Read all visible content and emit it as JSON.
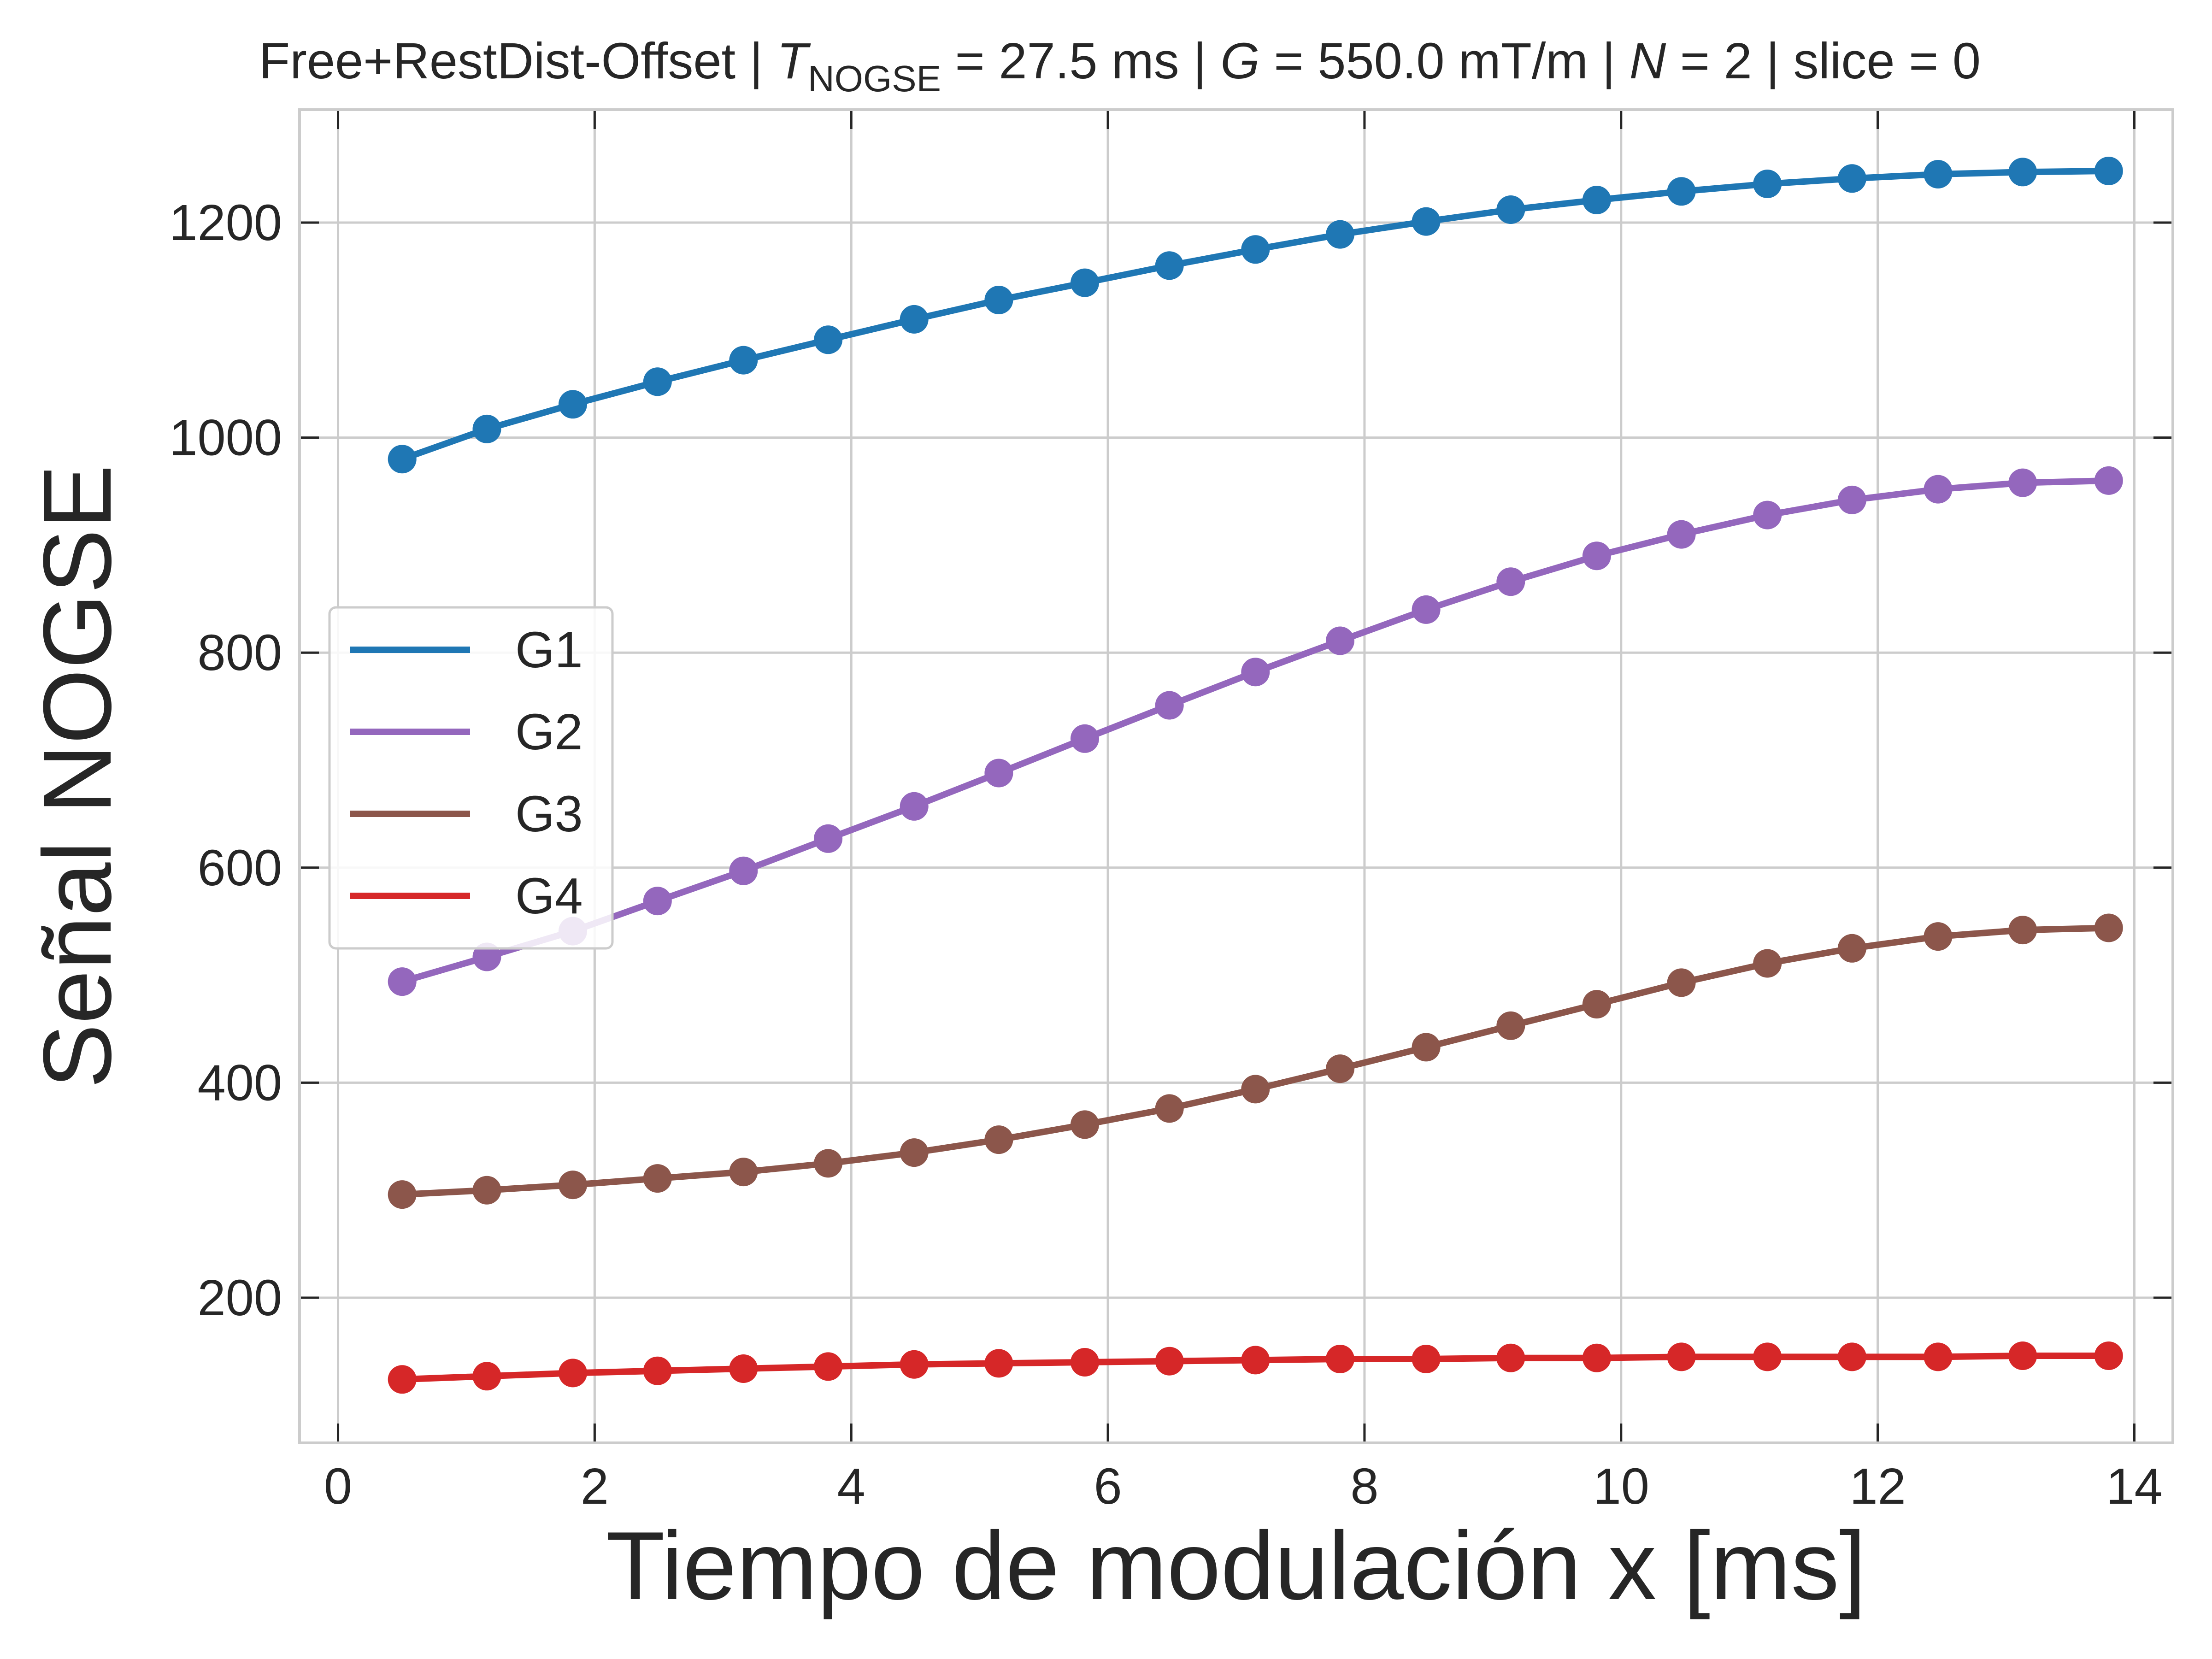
{
  "chart_data": {
    "type": "line",
    "title": {
      "prefix": "Free+RestDist-Offset | ",
      "t_symbol": "T",
      "t_sub": "NOGSE",
      "t_value": " = 27.5 ms | ",
      "g_symbol": "G",
      "g_value": " = 550.0 mT/m | ",
      "n_symbol": "N",
      "n_value": " = 2 | slice = 0"
    },
    "xlabel": "Tiempo de modulación x [ms]",
    "ylabel": "Señal NOGSE",
    "xlim": [
      -0.3,
      14.3
    ],
    "ylim": [
      65,
      1305
    ],
    "xticks": [
      0,
      2,
      4,
      6,
      8,
      10,
      12,
      14
    ],
    "yticks": [
      200,
      400,
      600,
      800,
      1000,
      1200
    ],
    "grid": true,
    "legend_position": "center-left",
    "x": [
      0.5,
      1.16,
      1.83,
      2.49,
      3.16,
      3.82,
      4.49,
      5.15,
      5.82,
      6.48,
      7.15,
      7.81,
      8.48,
      9.14,
      9.81,
      10.47,
      11.14,
      11.8,
      12.47,
      13.13,
      13.8
    ],
    "series": [
      {
        "name": "G1",
        "color": "#1f77b4",
        "values": [
          980,
          1008,
          1031,
          1052,
          1072,
          1091,
          1110,
          1128,
          1144,
          1160,
          1175,
          1189,
          1201,
          1212,
          1221,
          1229,
          1236,
          1241,
          1245,
          1247,
          1248
        ]
      },
      {
        "name": "G2",
        "color": "#9467bd",
        "values": [
          494,
          517,
          541,
          569,
          597,
          627,
          657,
          688,
          720,
          751,
          782,
          811,
          840,
          866,
          890,
          910,
          928,
          942,
          952,
          958,
          960
        ]
      },
      {
        "name": "G3",
        "color": "#8c564b",
        "values": [
          296,
          300,
          305,
          311,
          317,
          325,
          335,
          347,
          361,
          376,
          394,
          413,
          433,
          453,
          473,
          493,
          511,
          525,
          536,
          542,
          544
        ]
      },
      {
        "name": "G4",
        "color": "#d62728",
        "values": [
          124,
          127,
          130,
          132,
          134,
          136,
          138,
          139,
          140,
          141,
          142,
          143,
          143,
          144,
          144,
          145,
          145,
          145,
          145,
          146,
          146
        ]
      }
    ]
  }
}
